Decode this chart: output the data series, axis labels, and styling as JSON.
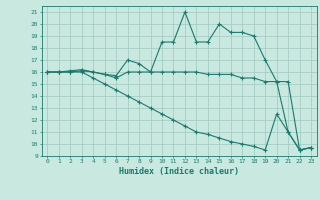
{
  "xlabel": "Humidex (Indice chaleur)",
  "bg_color": "#c8e8e0",
  "grid_color": "#a0c8c0",
  "line_color": "#1a7a6e",
  "xlim": [
    -0.5,
    23.5
  ],
  "ylim": [
    9,
    21.5
  ],
  "yticks": [
    9,
    10,
    11,
    12,
    13,
    14,
    15,
    16,
    17,
    18,
    19,
    20,
    21
  ],
  "xticks": [
    0,
    1,
    2,
    3,
    4,
    5,
    6,
    7,
    8,
    9,
    10,
    11,
    12,
    13,
    14,
    15,
    16,
    17,
    18,
    19,
    20,
    21,
    22,
    23
  ],
  "lines": [
    {
      "x": [
        0,
        1,
        2,
        3,
        4,
        5,
        6,
        7,
        8,
        9,
        10,
        11,
        12,
        13,
        14,
        15,
        16,
        17,
        18,
        19,
        20,
        21,
        22,
        23
      ],
      "y": [
        16,
        16,
        16,
        16.1,
        16,
        15.8,
        15.7,
        17,
        16.7,
        16,
        18.5,
        18.5,
        21,
        18.5,
        18.5,
        20,
        19.3,
        19.3,
        19,
        17,
        15.2,
        11,
        9.5,
        9.7
      ]
    },
    {
      "x": [
        0,
        1,
        2,
        3,
        4,
        5,
        6,
        7,
        8,
        9,
        10,
        11,
        12,
        13,
        14,
        15,
        16,
        17,
        18,
        19,
        20,
        21,
        22,
        23
      ],
      "y": [
        16,
        16,
        16.1,
        16.2,
        16,
        15.8,
        15.5,
        16,
        16,
        16,
        16,
        16,
        16,
        16,
        15.8,
        15.8,
        15.8,
        15.5,
        15.5,
        15.2,
        15.2,
        15.2,
        9.5,
        9.7
      ]
    },
    {
      "x": [
        0,
        1,
        2,
        3,
        4,
        5,
        6,
        7,
        8,
        9,
        10,
        11,
        12,
        13,
        14,
        15,
        16,
        17,
        18,
        19,
        20,
        21,
        22,
        23
      ],
      "y": [
        16,
        16,
        16,
        16,
        15.5,
        15,
        14.5,
        14,
        13.5,
        13,
        12.5,
        12,
        11.5,
        11,
        10.8,
        10.5,
        10.2,
        10,
        9.8,
        9.5,
        12.5,
        11,
        9.5,
        9.7
      ]
    }
  ]
}
